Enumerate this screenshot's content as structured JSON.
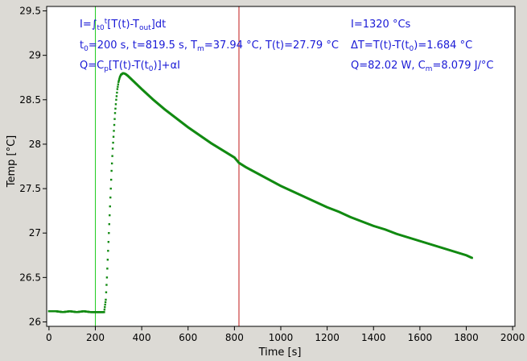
{
  "chart_data": {
    "type": "scatter",
    "xlabel": "Time [s]",
    "ylabel": "Temp [°C]",
    "xlim": [
      -10,
      2010
    ],
    "ylim": [
      25.95,
      29.55
    ],
    "xticks": [
      0,
      200,
      400,
      600,
      800,
      1000,
      1200,
      1400,
      1600,
      1800,
      2000
    ],
    "yticks": [
      26,
      26.5,
      27,
      27.5,
      28,
      28.5,
      29,
      29.5
    ],
    "xtick_labels": [
      "0",
      "200",
      "400",
      "600",
      "800",
      "1000",
      "1200",
      "1400",
      "1600",
      "1800",
      "2000"
    ],
    "ytick_labels": [
      "26",
      "26.5",
      "27",
      "27.5",
      "28",
      "28.5",
      "29",
      "29.5"
    ],
    "grid": false,
    "vlines": [
      {
        "x": 200,
        "color": "#22cc22"
      },
      {
        "x": 819.5,
        "color": "#c01818"
      }
    ],
    "series": [
      {
        "color": "#128a12",
        "points": [
          [
            0,
            26.12
          ],
          [
            30,
            26.12
          ],
          [
            60,
            26.11
          ],
          [
            90,
            26.12
          ],
          [
            120,
            26.11
          ],
          [
            150,
            26.12
          ],
          [
            180,
            26.11
          ],
          [
            210,
            26.11
          ],
          [
            238,
            26.11
          ],
          [
            245,
            26.25
          ],
          [
            250,
            26.5
          ],
          [
            255,
            26.8
          ],
          [
            260,
            27.1
          ],
          [
            265,
            27.4
          ],
          [
            270,
            27.7
          ],
          [
            275,
            27.95
          ],
          [
            280,
            28.15
          ],
          [
            285,
            28.35
          ],
          [
            290,
            28.5
          ],
          [
            295,
            28.62
          ],
          [
            300,
            28.7
          ],
          [
            305,
            28.75
          ],
          [
            310,
            28.78
          ],
          [
            320,
            28.8
          ],
          [
            330,
            28.79
          ],
          [
            340,
            28.77
          ],
          [
            360,
            28.72
          ],
          [
            380,
            28.67
          ],
          [
            400,
            28.62
          ],
          [
            450,
            28.5
          ],
          [
            500,
            28.39
          ],
          [
            550,
            28.29
          ],
          [
            600,
            28.19
          ],
          [
            650,
            28.1
          ],
          [
            700,
            28.01
          ],
          [
            750,
            27.93
          ],
          [
            800,
            27.85
          ],
          [
            819.5,
            27.79
          ],
          [
            850,
            27.74
          ],
          [
            900,
            27.67
          ],
          [
            950,
            27.6
          ],
          [
            1000,
            27.53
          ],
          [
            1050,
            27.47
          ],
          [
            1100,
            27.41
          ],
          [
            1150,
            27.35
          ],
          [
            1200,
            27.29
          ],
          [
            1250,
            27.24
          ],
          [
            1300,
            27.18
          ],
          [
            1350,
            27.13
          ],
          [
            1400,
            27.08
          ],
          [
            1450,
            27.04
          ],
          [
            1500,
            26.99
          ],
          [
            1550,
            26.95
          ],
          [
            1600,
            26.91
          ],
          [
            1650,
            26.87
          ],
          [
            1700,
            26.83
          ],
          [
            1750,
            26.79
          ],
          [
            1800,
            26.75
          ],
          [
            1825,
            26.72
          ]
        ]
      }
    ],
    "annotations": {
      "integral_formula": {
        "a": "I=∫",
        "b": "t0",
        "c": "t",
        "d": "[T(t)-T",
        "e": "out",
        "f": "]dt"
      },
      "params_line": {
        "a": "t",
        "b": "0",
        "c": "=200 s,   t=819.5 s,   T",
        "d": "m",
        "e": "=37.94 °C,  T(t)=27.79 °C"
      },
      "heat_formula": {
        "a": "Q=C",
        "b": "p",
        "c": "[T(t)-T(t",
        "d": "0",
        "e": ")]+αI"
      },
      "integral_value": "I=1320 °Cs",
      "delta_line": {
        "a": "ΔT=T(t)-T(t",
        "b": "0",
        "c": ")=1.684 °C"
      },
      "q_line": {
        "a": "Q=82.02 W,   C",
        "b": "m",
        "c": "=8.079 J/°C"
      }
    }
  }
}
